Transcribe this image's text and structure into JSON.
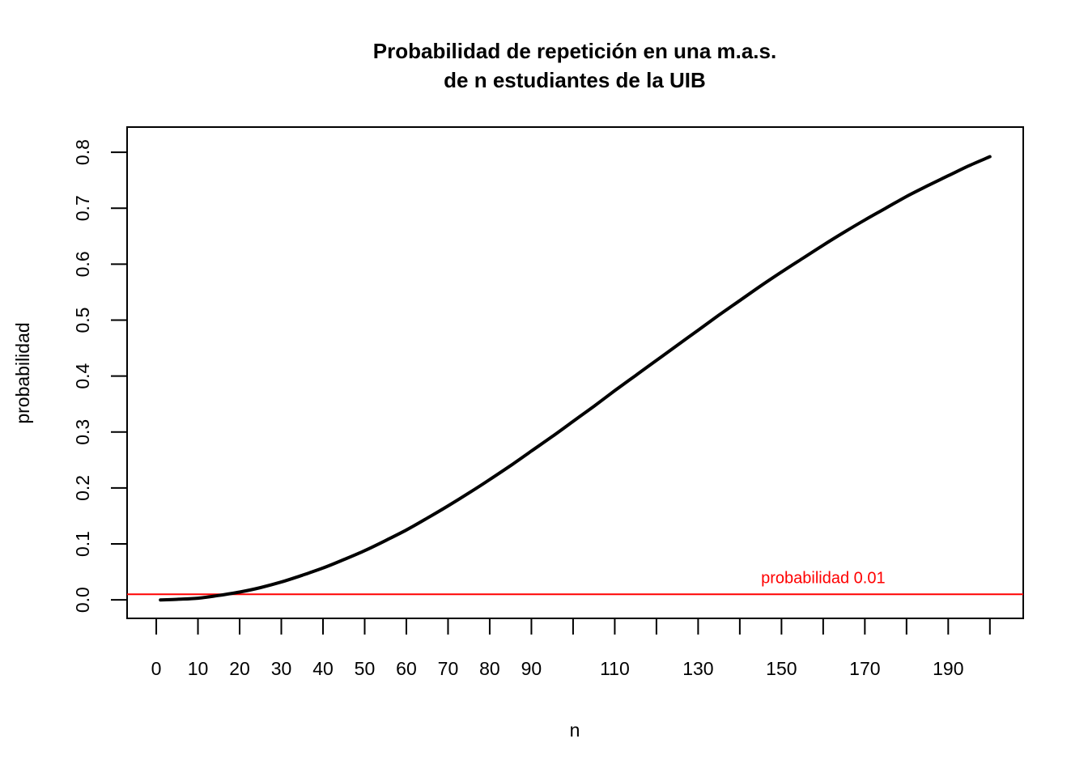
{
  "chart_data": {
    "type": "line",
    "title_line1": "Probabilidad de repetición en una m.a.s.",
    "title_line2": "de n estudiantes de la UIB",
    "xlabel": "n",
    "ylabel": "probabilidad",
    "xlim": [
      -7,
      208
    ],
    "ylim": [
      -0.033,
      0.845
    ],
    "x_ticks": [
      0,
      10,
      20,
      30,
      40,
      50,
      60,
      70,
      80,
      90,
      100,
      110,
      120,
      130,
      140,
      150,
      160,
      170,
      180,
      190,
      200
    ],
    "x_tick_labels": [
      "0",
      "10",
      "20",
      "30",
      "40",
      "50",
      "60",
      "70",
      "80",
      "90",
      "",
      "110",
      "",
      "130",
      "",
      "150",
      "",
      "170",
      "",
      "190",
      ""
    ],
    "y_ticks": [
      0.0,
      0.1,
      0.2,
      0.3,
      0.4,
      0.5,
      0.6,
      0.7,
      0.8
    ],
    "y_tick_labels": [
      "0.0",
      "0.1",
      "0.2",
      "0.3",
      "0.4",
      "0.5",
      "0.6",
      "0.7",
      "0.8"
    ],
    "grid": false,
    "series": [
      {
        "color": "#000000",
        "x": [
          1,
          5,
          10,
          15,
          20,
          25,
          30,
          35,
          40,
          45,
          50,
          55,
          60,
          65,
          70,
          75,
          80,
          85,
          90,
          95,
          100,
          105,
          110,
          115,
          120,
          125,
          130,
          135,
          140,
          145,
          150,
          155,
          160,
          165,
          170,
          175,
          180,
          185,
          190,
          195,
          200
        ],
        "y": [
          0.0,
          0.001,
          0.003,
          0.008,
          0.014,
          0.022,
          0.032,
          0.044,
          0.057,
          0.072,
          0.088,
          0.106,
          0.125,
          0.146,
          0.168,
          0.191,
          0.215,
          0.24,
          0.266,
          0.292,
          0.319,
          0.346,
          0.374,
          0.401,
          0.428,
          0.455,
          0.482,
          0.509,
          0.535,
          0.561,
          0.586,
          0.61,
          0.634,
          0.657,
          0.679,
          0.7,
          0.721,
          0.74,
          0.758,
          0.776,
          0.792
        ]
      }
    ],
    "hline": {
      "y": 0.01,
      "color": "#ff0000",
      "label": "probabilidad 0.01",
      "label_x": 160
    }
  }
}
